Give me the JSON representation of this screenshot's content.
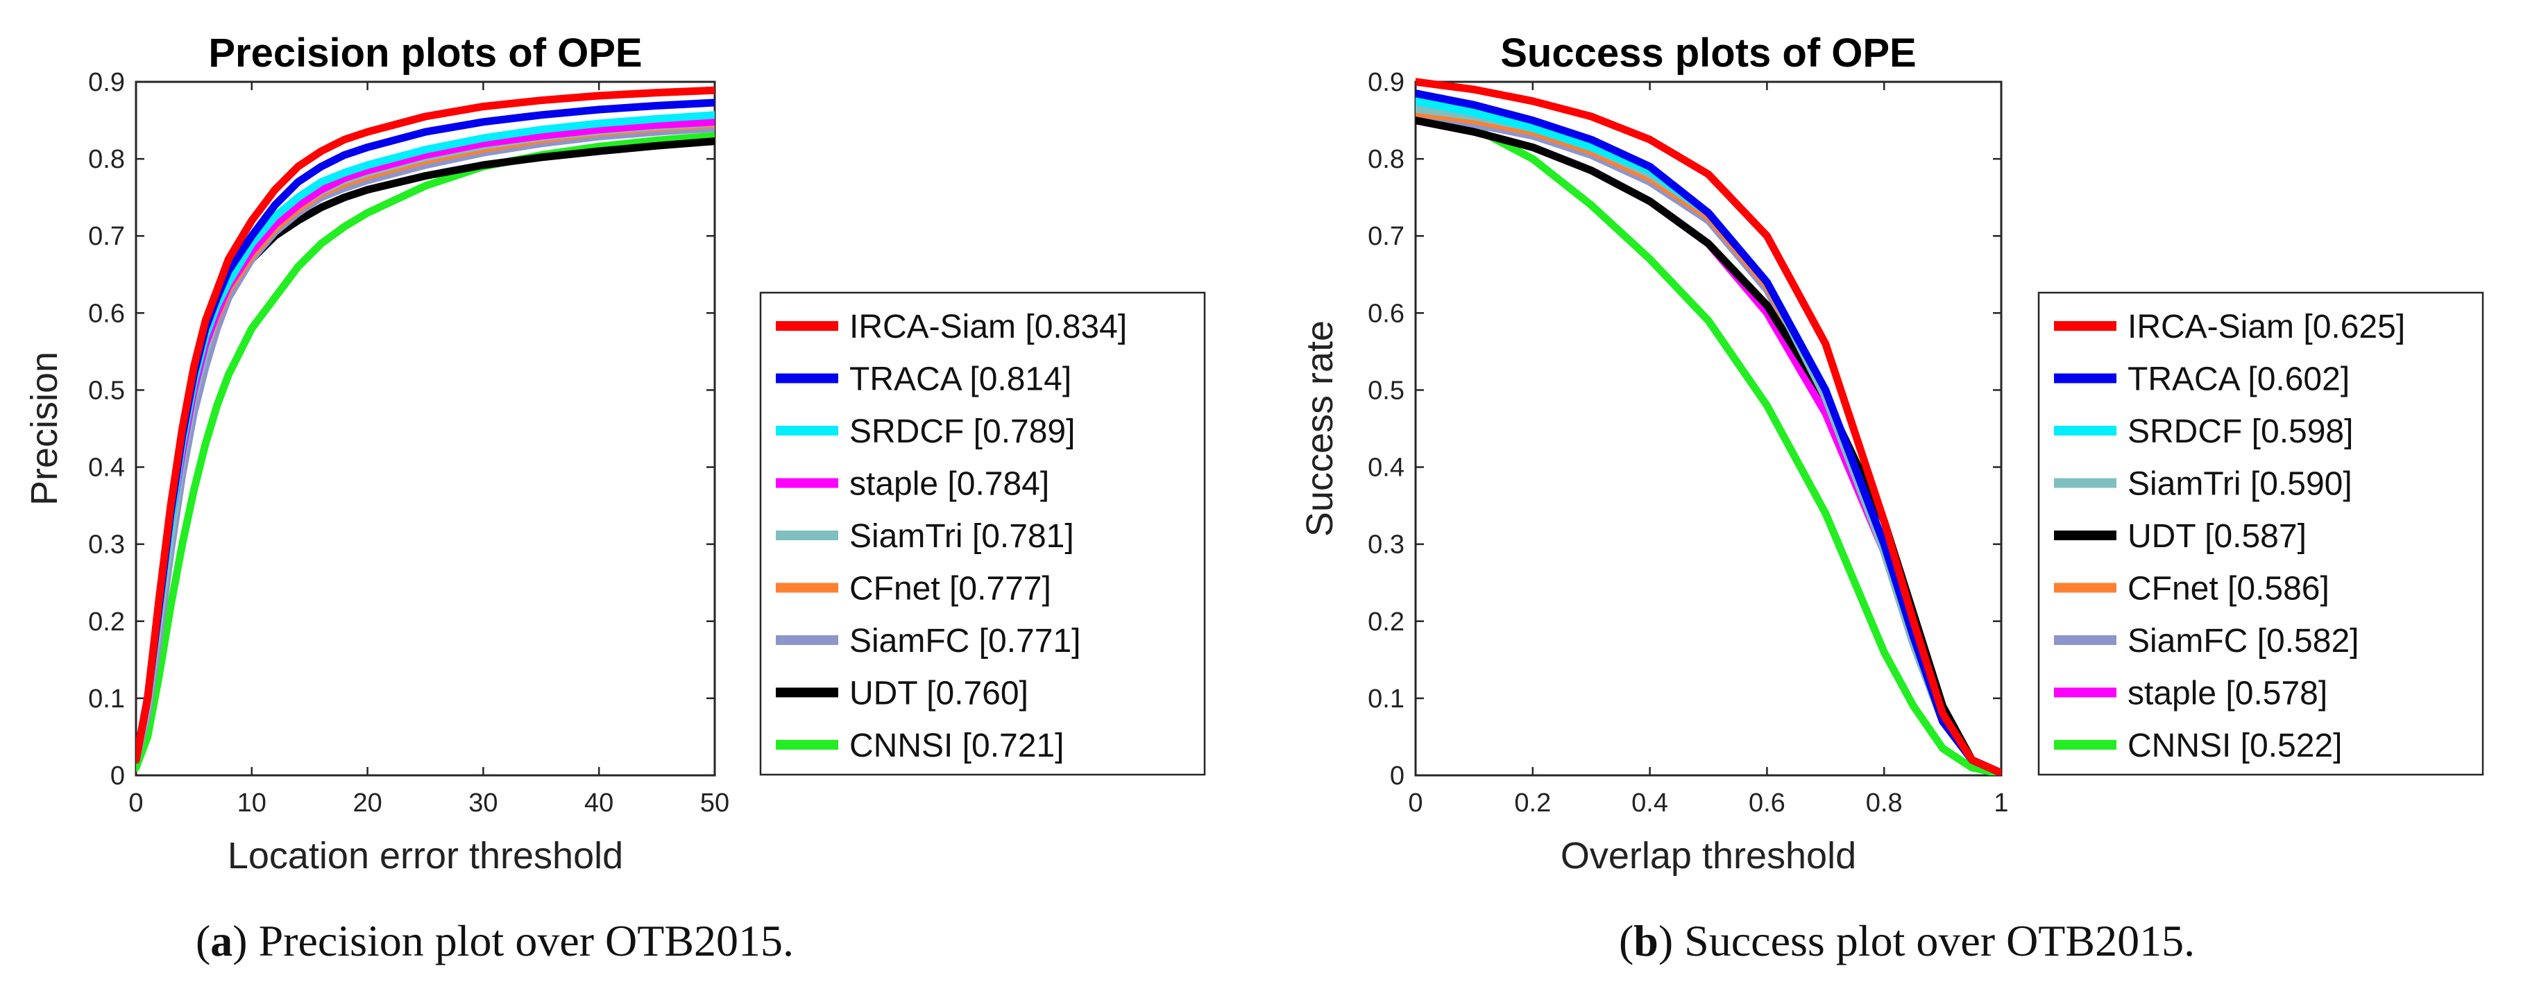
{
  "chart_data": [
    {
      "type": "line",
      "title": "Precision plots of OPE",
      "xlabel": "Location error threshold",
      "ylabel": "Precision",
      "xlim": [
        0,
        50
      ],
      "ylim": [
        0,
        0.9
      ],
      "xticks": [
        0,
        10,
        20,
        30,
        40,
        50
      ],
      "yticks": [
        0,
        0.1,
        0.2,
        0.3,
        0.4,
        0.5,
        0.6,
        0.7,
        0.8,
        0.9
      ],
      "legend_position": "outside-right",
      "caption": {
        "label": "a",
        "text": " Precision plot over OTB2015."
      },
      "x": [
        0,
        1,
        2,
        3,
        4,
        5,
        6,
        7,
        8,
        10,
        12,
        14,
        16,
        18,
        20,
        25,
        30,
        35,
        40,
        45,
        50
      ],
      "series": [
        {
          "name": "IRCA-Siam",
          "score": "0.834",
          "color": "#ff0000",
          "values": [
            0.02,
            0.1,
            0.23,
            0.35,
            0.45,
            0.53,
            0.59,
            0.63,
            0.67,
            0.72,
            0.76,
            0.79,
            0.81,
            0.825,
            0.835,
            0.855,
            0.868,
            0.876,
            0.882,
            0.886,
            0.889
          ]
        },
        {
          "name": "TRACA",
          "score": "0.814",
          "color": "#0000ee",
          "values": [
            0.02,
            0.1,
            0.22,
            0.34,
            0.44,
            0.52,
            0.58,
            0.62,
            0.655,
            0.7,
            0.74,
            0.77,
            0.79,
            0.805,
            0.815,
            0.835,
            0.848,
            0.857,
            0.864,
            0.869,
            0.873
          ]
        },
        {
          "name": "SRDCF",
          "score": "0.789",
          "color": "#00eeff",
          "values": [
            0.02,
            0.1,
            0.22,
            0.33,
            0.43,
            0.51,
            0.57,
            0.61,
            0.64,
            0.69,
            0.725,
            0.75,
            0.77,
            0.782,
            0.792,
            0.812,
            0.827,
            0.838,
            0.846,
            0.852,
            0.857
          ]
        },
        {
          "name": "staple",
          "score": "0.784",
          "color": "#ff00ff",
          "values": [
            0.02,
            0.1,
            0.22,
            0.33,
            0.42,
            0.5,
            0.56,
            0.6,
            0.635,
            0.68,
            0.715,
            0.74,
            0.76,
            0.775,
            0.785,
            0.805,
            0.82,
            0.83,
            0.838,
            0.844,
            0.848
          ]
        },
        {
          "name": "SiamTri",
          "score": "0.781",
          "color": "#7fbfbf",
          "values": [
            0.02,
            0.09,
            0.2,
            0.31,
            0.41,
            0.49,
            0.55,
            0.6,
            0.635,
            0.68,
            0.715,
            0.74,
            0.758,
            0.772,
            0.782,
            0.802,
            0.817,
            0.828,
            0.836,
            0.842,
            0.847
          ]
        },
        {
          "name": "CFnet",
          "score": "0.777",
          "color": "#ff8030",
          "values": [
            0.02,
            0.09,
            0.2,
            0.31,
            0.41,
            0.49,
            0.55,
            0.595,
            0.63,
            0.675,
            0.71,
            0.735,
            0.755,
            0.768,
            0.778,
            0.798,
            0.813,
            0.825,
            0.834,
            0.84,
            0.845
          ]
        },
        {
          "name": "SiamFC",
          "score": "0.771",
          "color": "#8c96cc",
          "values": [
            0.02,
            0.08,
            0.18,
            0.29,
            0.39,
            0.47,
            0.53,
            0.58,
            0.62,
            0.67,
            0.705,
            0.73,
            0.75,
            0.762,
            0.772,
            0.792,
            0.808,
            0.82,
            0.829,
            0.835,
            0.84
          ]
        },
        {
          "name": "UDT",
          "score": "0.760",
          "color": "#000000",
          "values": [
            0.02,
            0.09,
            0.2,
            0.31,
            0.41,
            0.49,
            0.55,
            0.595,
            0.63,
            0.67,
            0.7,
            0.72,
            0.737,
            0.75,
            0.76,
            0.778,
            0.792,
            0.802,
            0.81,
            0.817,
            0.823
          ]
        },
        {
          "name": "CNNSI",
          "score": "0.721",
          "color": "#22ee22",
          "values": [
            0.01,
            0.05,
            0.13,
            0.22,
            0.3,
            0.37,
            0.43,
            0.48,
            0.52,
            0.58,
            0.62,
            0.66,
            0.69,
            0.712,
            0.73,
            0.765,
            0.79,
            0.805,
            0.816,
            0.824,
            0.83
          ]
        }
      ]
    },
    {
      "type": "line",
      "title": "Success plots of OPE",
      "xlabel": "Overlap threshold",
      "ylabel": "Success rate",
      "xlim": [
        0,
        1
      ],
      "ylim": [
        0,
        0.9
      ],
      "xticks": [
        0,
        0.2,
        0.4,
        0.6,
        0.8,
        1
      ],
      "yticks": [
        0,
        0.1,
        0.2,
        0.3,
        0.4,
        0.5,
        0.6,
        0.7,
        0.8,
        0.9
      ],
      "legend_position": "outside-right",
      "caption": {
        "label": "b",
        "text": " Success plot over OTB2015."
      },
      "x": [
        0,
        0.1,
        0.2,
        0.3,
        0.4,
        0.5,
        0.6,
        0.7,
        0.8,
        0.85,
        0.9,
        0.95,
        1.0
      ],
      "series": [
        {
          "name": "IRCA-Siam",
          "score": "0.625",
          "color": "#ff0000",
          "values": [
            0.9,
            0.89,
            0.875,
            0.855,
            0.825,
            0.78,
            0.7,
            0.56,
            0.33,
            0.2,
            0.08,
            0.02,
            0.003
          ]
        },
        {
          "name": "TRACA",
          "score": "0.602",
          "color": "#0000ee",
          "values": [
            0.885,
            0.87,
            0.85,
            0.825,
            0.79,
            0.73,
            0.64,
            0.5,
            0.3,
            0.18,
            0.07,
            0.02,
            0.003
          ]
        },
        {
          "name": "SRDCF",
          "score": "0.598",
          "color": "#00eeff",
          "values": [
            0.875,
            0.86,
            0.84,
            0.815,
            0.785,
            0.73,
            0.64,
            0.5,
            0.3,
            0.18,
            0.07,
            0.02,
            0.003
          ]
        },
        {
          "name": "SiamTri",
          "score": "0.590",
          "color": "#7fbfbf",
          "values": [
            0.865,
            0.855,
            0.84,
            0.815,
            0.78,
            0.73,
            0.64,
            0.49,
            0.29,
            0.17,
            0.07,
            0.02,
            0.003
          ]
        },
        {
          "name": "UDT",
          "score": "0.587",
          "color": "#000000",
          "values": [
            0.85,
            0.835,
            0.815,
            0.785,
            0.745,
            0.69,
            0.61,
            0.49,
            0.33,
            0.21,
            0.09,
            0.02,
            0.003
          ]
        },
        {
          "name": "CFnet",
          "score": "0.586",
          "color": "#ff8030",
          "values": [
            0.86,
            0.85,
            0.835,
            0.81,
            0.775,
            0.725,
            0.635,
            0.49,
            0.29,
            0.17,
            0.07,
            0.02,
            0.003
          ]
        },
        {
          "name": "SiamFC",
          "score": "0.582",
          "color": "#8c96cc",
          "values": [
            0.86,
            0.845,
            0.83,
            0.805,
            0.77,
            0.72,
            0.63,
            0.49,
            0.29,
            0.17,
            0.07,
            0.02,
            0.003
          ]
        },
        {
          "name": "staple",
          "score": "0.578",
          "color": "#ff00ff",
          "values": [
            0.85,
            0.835,
            0.815,
            0.785,
            0.745,
            0.69,
            0.6,
            0.47,
            0.29,
            0.17,
            0.07,
            0.02,
            0.003
          ]
        },
        {
          "name": "CNNSI",
          "score": "0.522",
          "color": "#22ee22",
          "values": [
            0.865,
            0.84,
            0.8,
            0.74,
            0.67,
            0.59,
            0.48,
            0.34,
            0.16,
            0.09,
            0.035,
            0.01,
            0.002
          ]
        }
      ]
    }
  ]
}
